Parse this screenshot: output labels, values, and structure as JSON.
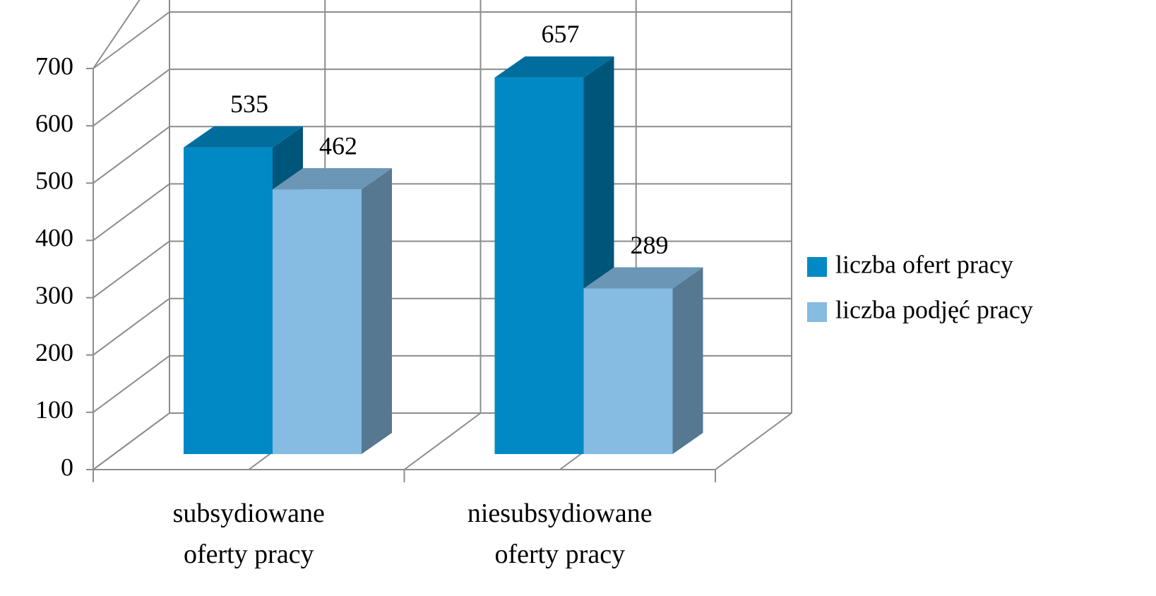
{
  "chart_data": {
    "type": "bar3d",
    "categories": [
      "subsydiowane oferty pracy",
      "niesubsydiowane oferty pracy"
    ],
    "series": [
      {
        "name": "liczba ofert pracy",
        "color": "#0089c4",
        "values": [
          535,
          657
        ]
      },
      {
        "name": "liczba podjęć pracy",
        "color": "#86bbe2",
        "values": [
          462,
          289
        ]
      }
    ],
    "ylim": [
      0,
      700
    ],
    "yticks": [
      0,
      100,
      200,
      300,
      400,
      500,
      600,
      700
    ],
    "grid": true,
    "legend": "right"
  }
}
